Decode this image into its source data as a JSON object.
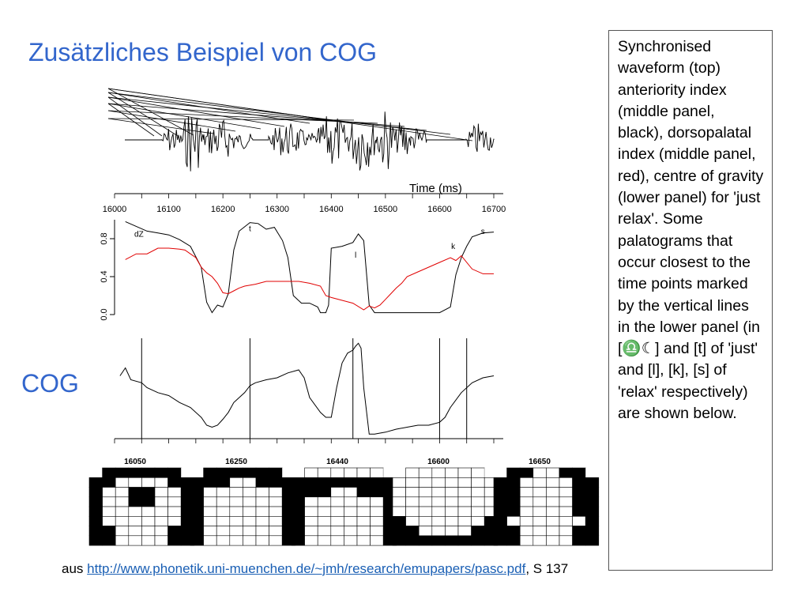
{
  "slide": {
    "title": "Zusätzliches Beispiel von COG",
    "side_label": "COG"
  },
  "textbox": {
    "text": "Synchronised waveform (top) anteriority index (middle panel, black), dorsopalatal index (middle panel, red), centre of gravity (lower panel) for 'just relax'. Some palatograms that occur closest to the time points marked by the vertical lines in the lower panel (in [♎☾] and [t] of 'just' and [l], [k], [s] of 'relax' respectively) are shown below."
  },
  "caption": {
    "prefix": "aus ",
    "link_text": "http://www.phonetik.uni-muenchen.de/~jmh/research/emupapers/pasc.pdf",
    "suffix": ", S 137"
  },
  "colors": {
    "title": "#3366cc",
    "dorsopalatal": "#e00000",
    "anteriority": "#000000"
  },
  "chart_data": [
    {
      "type": "line",
      "name": "waveform",
      "xlabel": "Time (ms)",
      "x_ticks": [
        16000,
        16100,
        16200,
        16300,
        16400,
        16500,
        16600,
        16700
      ],
      "xlim": [
        16000,
        16700
      ]
    },
    {
      "type": "line",
      "name": "middle-panel",
      "xlim": [
        16000,
        16700
      ],
      "ylim": [
        0.0,
        1.0
      ],
      "y_ticks": [
        "0.0",
        "0.4",
        "0.8"
      ],
      "segment_labels": [
        {
          "text": "dZ",
          "x": 16045,
          "y": 0.82
        },
        {
          "text": "t",
          "x": 16250,
          "y": 0.88
        },
        {
          "text": "l",
          "x": 16445,
          "y": 0.6
        },
        {
          "text": "k",
          "x": 16625,
          "y": 0.69
        },
        {
          "text": "s",
          "x": 16680,
          "y": 0.85
        }
      ],
      "series": [
        {
          "name": "anteriority index",
          "color": "#000000",
          "x": [
            16020,
            16040,
            16060,
            16080,
            16100,
            16120,
            16140,
            16160,
            16170,
            16180,
            16190,
            16200,
            16210,
            16220,
            16230,
            16250,
            16265,
            16280,
            16295,
            16310,
            16320,
            16330,
            16345,
            16360,
            16375,
            16380,
            16390,
            16395,
            16400,
            16420,
            16440,
            16450,
            16460,
            16470,
            16480,
            16490,
            16500,
            16520,
            16540,
            16560,
            16580,
            16600,
            16620,
            16630,
            16640,
            16650,
            16660,
            16680,
            16700
          ],
          "y": [
            0.98,
            0.93,
            0.88,
            0.86,
            0.84,
            0.79,
            0.72,
            0.5,
            0.13,
            0.02,
            0.1,
            0.08,
            0.22,
            0.68,
            0.88,
            0.97,
            0.96,
            0.9,
            0.92,
            0.78,
            0.6,
            0.2,
            0.12,
            0.12,
            0.08,
            0.02,
            0.02,
            0.1,
            0.7,
            0.72,
            0.76,
            0.85,
            0.78,
            0.1,
            0.02,
            0.02,
            0.02,
            0.02,
            0.02,
            0.02,
            0.02,
            0.02,
            0.08,
            0.42,
            0.6,
            0.72,
            0.82,
            0.86,
            0.87
          ]
        },
        {
          "name": "dorsopalatal index",
          "color": "#e00000",
          "x": [
            16020,
            16040,
            16060,
            16080,
            16100,
            16120,
            16130,
            16140,
            16150,
            16160,
            16170,
            16180,
            16190,
            16200,
            16210,
            16220,
            16230,
            16240,
            16260,
            16280,
            16300,
            16320,
            16340,
            16360,
            16380,
            16390,
            16400,
            16420,
            16440,
            16460,
            16470,
            16480,
            16490,
            16500,
            16510,
            16520,
            16530,
            16540,
            16560,
            16580,
            16600,
            16620,
            16630,
            16640,
            16660,
            16680,
            16700
          ],
          "y": [
            0.58,
            0.64,
            0.64,
            0.7,
            0.7,
            0.69,
            0.68,
            0.64,
            0.6,
            0.5,
            0.44,
            0.4,
            0.33,
            0.23,
            0.22,
            0.25,
            0.28,
            0.3,
            0.32,
            0.35,
            0.35,
            0.35,
            0.35,
            0.33,
            0.3,
            0.2,
            0.18,
            0.15,
            0.12,
            0.05,
            0.09,
            0.07,
            0.1,
            0.16,
            0.22,
            0.28,
            0.33,
            0.4,
            0.45,
            0.5,
            0.55,
            0.6,
            0.57,
            0.62,
            0.48,
            0.43,
            0.43
          ]
        }
      ]
    },
    {
      "type": "line",
      "name": "cog-panel",
      "xlim": [
        16000,
        16700
      ],
      "series": [
        {
          "name": "centre of gravity",
          "color": "#000000",
          "x": [
            16010,
            16020,
            16030,
            16050,
            16060,
            16080,
            16100,
            16120,
            16140,
            16160,
            16170,
            16180,
            16190,
            16200,
            16210,
            16220,
            16240,
            16250,
            16260,
            16280,
            16300,
            16320,
            16340,
            16350,
            16360,
            16380,
            16390,
            16400,
            16410,
            16420,
            16430,
            16440,
            16445,
            16450,
            16455,
            16460,
            16470,
            16480,
            16500,
            16520,
            16540,
            16560,
            16580,
            16600,
            16610,
            16620,
            16640,
            16660,
            16680,
            16700
          ],
          "y": [
            0.62,
            0.7,
            0.58,
            0.55,
            0.5,
            0.45,
            0.42,
            0.35,
            0.3,
            0.2,
            0.12,
            0.1,
            0.12,
            0.18,
            0.25,
            0.35,
            0.45,
            0.52,
            0.55,
            0.58,
            0.6,
            0.65,
            0.68,
            0.6,
            0.4,
            0.25,
            0.2,
            0.2,
            0.5,
            0.75,
            0.85,
            0.88,
            0.92,
            0.95,
            0.9,
            0.5,
            0.03,
            0.03,
            0.05,
            0.08,
            0.1,
            0.12,
            0.12,
            0.15,
            0.2,
            0.3,
            0.45,
            0.55,
            0.6,
            0.62
          ]
        }
      ],
      "vertical_markers": [
        16050,
        16250,
        16440,
        16600,
        16650
      ]
    }
  ],
  "palatograms": [
    {
      "label": "16050",
      "grid": [
        "0111111",
        "1100111",
        "1001000",
        "1001000",
        "1000000",
        "1000000",
        "1100000",
        "1100000"
      ]
    },
    {
      "label": "16250",
      "grid": [
        "0111111",
        "1110011",
        "1000001",
        "1000000",
        "1000000",
        "1000000",
        "1000000",
        "1000000"
      ]
    },
    {
      "label": "16440",
      "grid": [
        "0000000",
        "1111111",
        "1110000",
        "1000000",
        "1000000",
        "1000000",
        "1000000",
        "1000000"
      ]
    },
    {
      "label": "16600",
      "grid": [
        "0000000",
        "0000000",
        "0000000",
        "0000000",
        "0000000",
        "1000000",
        "1100000",
        "1111111"
      ]
    },
    {
      "label": "16650",
      "grid": [
        "0110000",
        "1100111",
        "1100111",
        "1100011",
        "1100011",
        "1000011",
        "1100011",
        "1100011"
      ]
    }
  ]
}
